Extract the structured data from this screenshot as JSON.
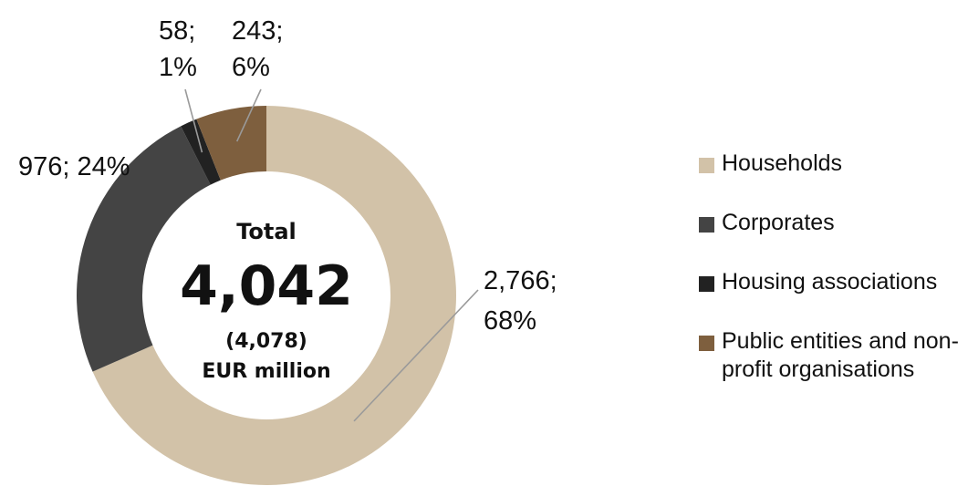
{
  "chart_data": {
    "type": "pie",
    "style": "donut",
    "series": [
      {
        "name": "Households",
        "value": 2766,
        "label_lines": [
          "2,766;",
          "68%"
        ],
        "color": "#d2c2a8"
      },
      {
        "name": "Corporates",
        "value": 976,
        "label_lines": [
          "976; 24%"
        ],
        "color": "#444444"
      },
      {
        "name": "Housing associations",
        "value": 58,
        "label_lines": [
          "58;",
          "1%"
        ],
        "color": "#222222"
      },
      {
        "name": "Public entities and non-profit organisations",
        "value": 243,
        "label_lines": [
          "243;",
          "6%"
        ],
        "color": "#7e5f3e"
      }
    ],
    "center": {
      "heading": "Total",
      "value": "4,042",
      "previous": "(4,078)",
      "unit": "EUR million"
    },
    "legend": {
      "position": "right",
      "items": [
        {
          "lines": [
            "Households"
          ],
          "color": "#d2c2a8"
        },
        {
          "lines": [
            "Corporates"
          ],
          "color": "#444444"
        },
        {
          "lines": [
            "Housing associations"
          ],
          "color": "#222222"
        },
        {
          "lines": [
            "Public entities and non-",
            "profit organisations"
          ],
          "color": "#7e5f3e"
        }
      ]
    }
  }
}
